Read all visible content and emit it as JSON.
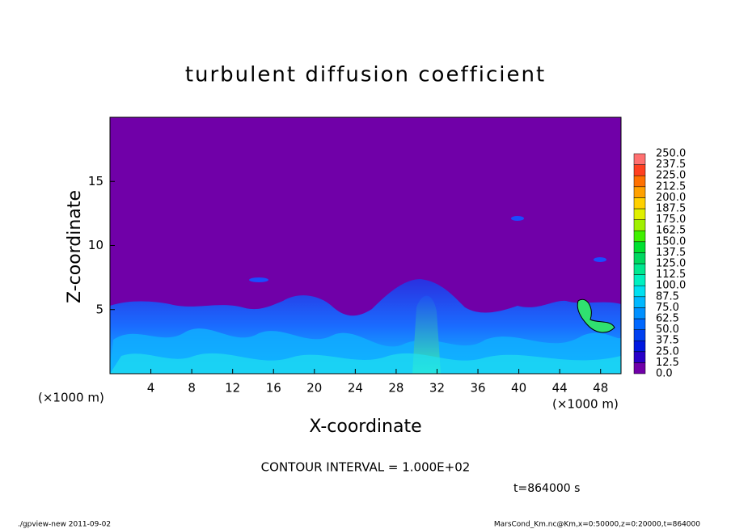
{
  "chart_data": {
    "type": "contour",
    "title": "turbulent diffusion coefficient",
    "x_label": "X-coordinate",
    "y_label": "Z-coordinate",
    "x_unit_label": "(×1000 m)",
    "xlim": [
      0,
      50
    ],
    "xticks": [
      4,
      8,
      12,
      16,
      20,
      24,
      28,
      32,
      36,
      40,
      44,
      48
    ],
    "ylim": [
      0,
      20
    ],
    "yticks": [
      5,
      10,
      15
    ],
    "levels": [
      {
        "value": 0,
        "label": "0.0"
      },
      {
        "value": 12.5,
        "label": "12.5"
      },
      {
        "value": 25,
        "label": "25.0"
      },
      {
        "value": 37.5,
        "label": "37.5"
      },
      {
        "value": 50,
        "label": "50.0"
      },
      {
        "value": 62.5,
        "label": "62.5"
      },
      {
        "value": 75,
        "label": "75.0"
      },
      {
        "value": 87.5,
        "label": "87.5"
      },
      {
        "value": 100,
        "label": "100.0"
      },
      {
        "value": 112.5,
        "label": "112.5"
      },
      {
        "value": 125,
        "label": "125.0"
      },
      {
        "value": 137.5,
        "label": "137.5"
      },
      {
        "value": 150,
        "label": "150.0"
      },
      {
        "value": 162.5,
        "label": "162.5"
      },
      {
        "value": 175,
        "label": "175.0"
      },
      {
        "value": 187.5,
        "label": "187.5"
      },
      {
        "value": 200,
        "label": "200.0"
      },
      {
        "value": 212.5,
        "label": "212.5"
      },
      {
        "value": 225,
        "label": "225.0"
      },
      {
        "value": 237.5,
        "label": "237.5"
      },
      {
        "value": 250,
        "label": "250.0"
      }
    ],
    "colors": [
      "#7000a8",
      "#2800c8",
      "#0018e0",
      "#0040f0",
      "#0068ff",
      "#0090ff",
      "#00b8ff",
      "#00e0f0",
      "#00f0c0",
      "#00e890",
      "#00d860",
      "#00e030",
      "#40f000",
      "#a0f000",
      "#e0f000",
      "#ffd000",
      "#ffa000",
      "#ff7000",
      "#ff4020",
      "#ff7070"
    ],
    "contour_interval": "CONTOUR INTERVAL = 1.000E+02",
    "time_label": "t=864000 s",
    "footer_left": "./gpview-new   2011-09-02",
    "footer_right": "MarsCond_Km.nc@Km,x=0:50000,z=0:20000,t=864000"
  }
}
